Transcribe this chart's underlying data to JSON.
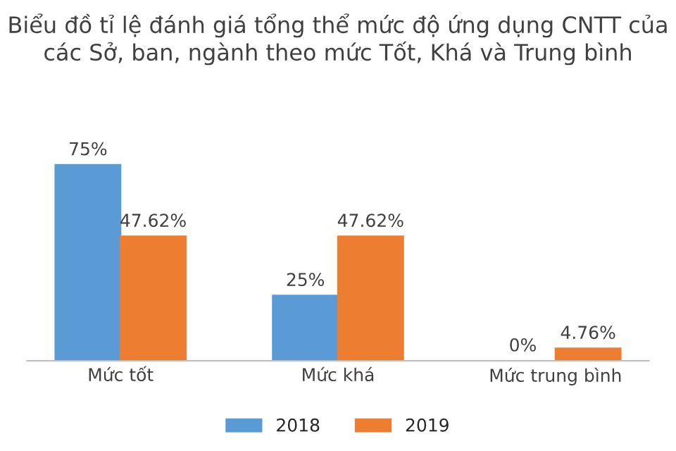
{
  "chart_data": {
    "type": "bar",
    "title": "Biểu đồ tỉ lệ đánh giá tổng thể mức độ ứng dụng CNTT của các Sở, ban, ngành theo mức Tốt, Khá và Trung bình",
    "categories": [
      "Mức tốt",
      "Mức khá",
      "Mức trung bình"
    ],
    "series": [
      {
        "name": "2018",
        "color": "#5b9bd5",
        "values": [
          75,
          25,
          0
        ],
        "value_labels": [
          "75%",
          "25%",
          "0%"
        ]
      },
      {
        "name": "2019",
        "color": "#ed7d31",
        "values": [
          47.62,
          47.62,
          4.76
        ],
        "value_labels": [
          "47.62%",
          "47.62%",
          "4.76%"
        ]
      }
    ],
    "legend": "bottom"
  }
}
